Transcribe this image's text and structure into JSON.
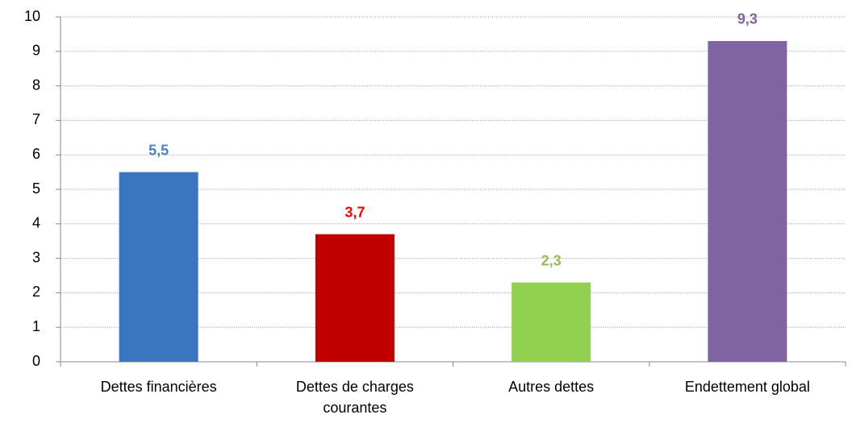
{
  "chart_data": {
    "type": "bar",
    "categories": [
      "Dettes financières",
      "Dettes de charges courantes",
      "Autres dettes",
      "Endettement global"
    ],
    "values": [
      5.5,
      3.7,
      2.3,
      9.3
    ],
    "value_labels": [
      "5,5",
      "3,7",
      "2,3",
      "9,3"
    ],
    "colors": [
      "#3a75c0",
      "#c00000",
      "#92d050",
      "#8064a2"
    ],
    "label_colors": [
      "#4f81bd",
      "#ff0000",
      "#9bbb59",
      "#8064a2"
    ],
    "ylim": [
      0,
      10
    ],
    "yticks": [
      0,
      1,
      2,
      3,
      4,
      5,
      6,
      7,
      8,
      9,
      10
    ],
    "grid": true
  }
}
